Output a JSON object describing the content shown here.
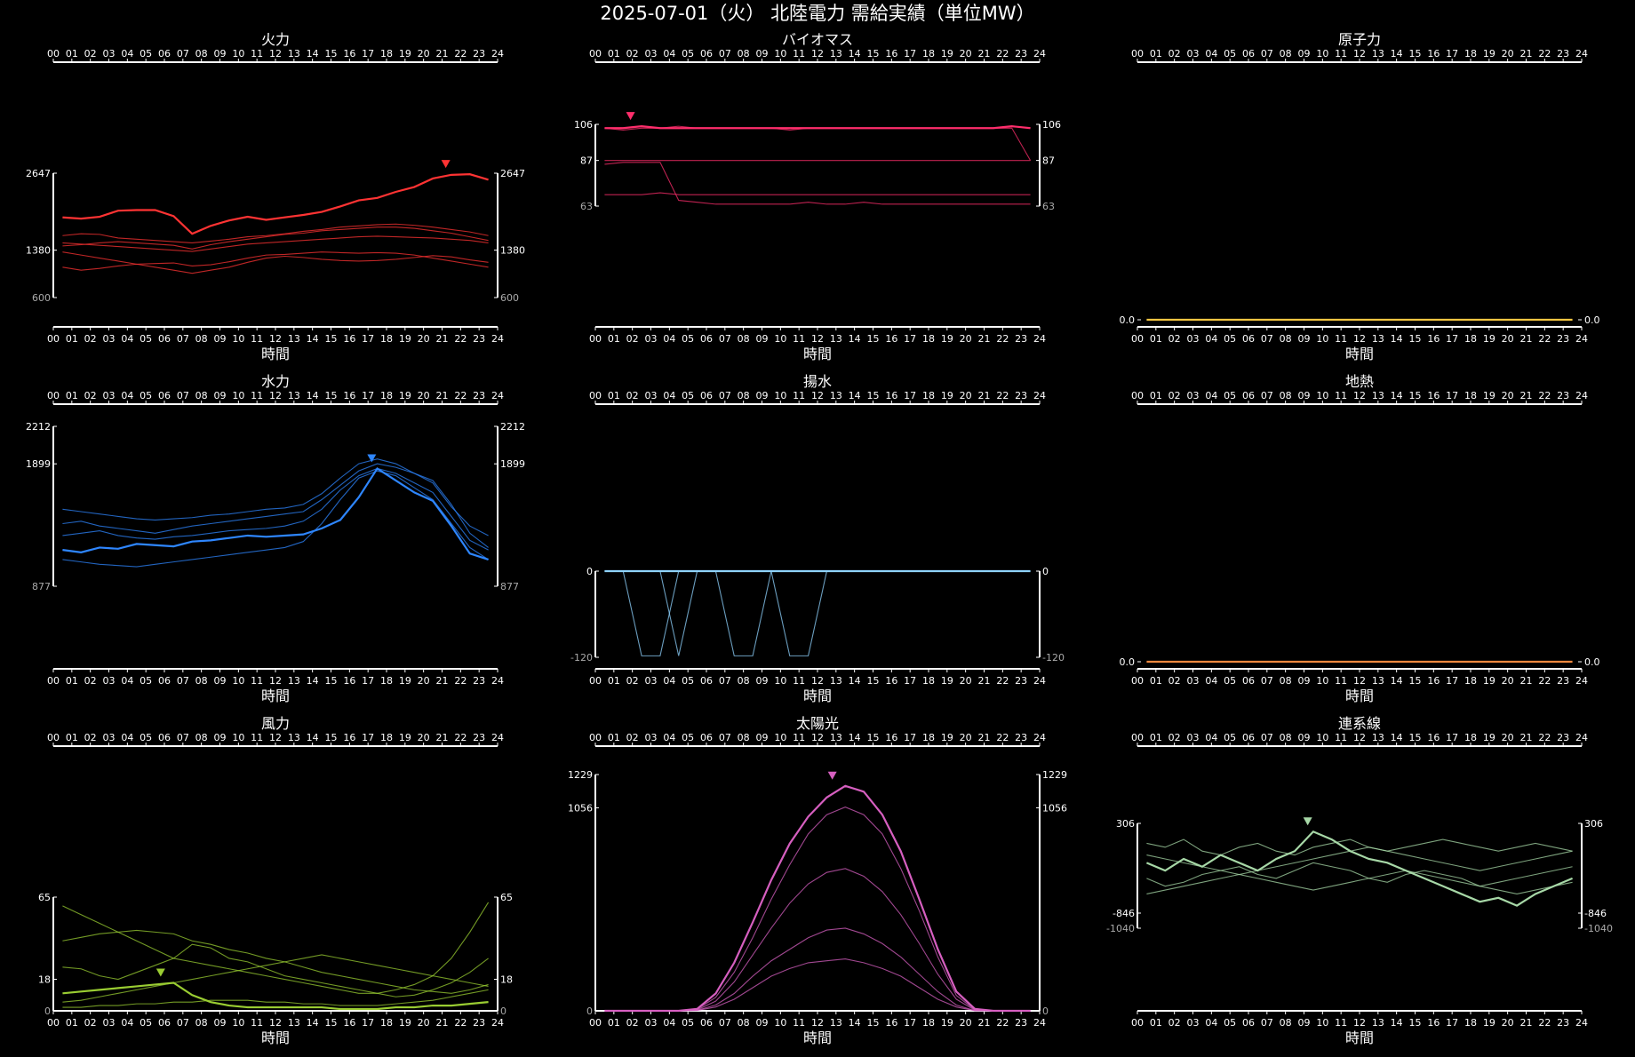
{
  "title": "2025-07-01（火） 北陸電力 需給実績（単位MW）",
  "hour_ticks": [
    "00",
    "01",
    "02",
    "03",
    "04",
    "05",
    "06",
    "07",
    "08",
    "09",
    "10",
    "11",
    "12",
    "13",
    "14",
    "15",
    "16",
    "17",
    "18",
    "19",
    "20",
    "21",
    "22",
    "23",
    "24"
  ],
  "xlabel": "時間",
  "chart_data": [
    {
      "type": "line",
      "title": "火力",
      "color": "#ff3333",
      "ylim": [
        600,
        2647
      ],
      "yticks": [
        600,
        1380,
        2647
      ],
      "ymax_label": "2647",
      "ymid_label": "1380",
      "ymin_label": "600",
      "peak_hour": 21.2,
      "series": [
        {
          "values": [
            1920,
            1900,
            1930,
            2030,
            2040,
            2040,
            1940,
            1650,
            1780,
            1870,
            1930,
            1880,
            1920,
            1960,
            2010,
            2100,
            2200,
            2240,
            2340,
            2420,
            2560,
            2620,
            2630,
            2540
          ]
        },
        {
          "values": [
            1450,
            1470,
            1500,
            1520,
            1500,
            1480,
            1460,
            1400,
            1470,
            1520,
            1560,
            1600,
            1640,
            1660,
            1700,
            1720,
            1740,
            1760,
            1760,
            1740,
            1700,
            1660,
            1600,
            1540
          ]
        },
        {
          "values": [
            1100,
            1050,
            1080,
            1120,
            1150,
            1160,
            1170,
            1120,
            1140,
            1190,
            1250,
            1300,
            1310,
            1330,
            1350,
            1340,
            1330,
            1340,
            1330,
            1300,
            1250,
            1200,
            1150,
            1100
          ]
        },
        {
          "values": [
            1620,
            1650,
            1640,
            1580,
            1560,
            1540,
            1520,
            1500,
            1530,
            1560,
            1600,
            1620,
            1650,
            1690,
            1720,
            1760,
            1780,
            1800,
            1810,
            1790,
            1760,
            1720,
            1680,
            1620
          ]
        },
        {
          "values": [
            1350,
            1300,
            1250,
            1200,
            1150,
            1100,
            1050,
            1000,
            1050,
            1100,
            1180,
            1250,
            1280,
            1260,
            1230,
            1210,
            1200,
            1210,
            1230,
            1260,
            1290,
            1270,
            1220,
            1180
          ]
        },
        {
          "values": [
            1500,
            1480,
            1460,
            1440,
            1420,
            1400,
            1380,
            1360,
            1400,
            1440,
            1480,
            1500,
            1520,
            1540,
            1560,
            1580,
            1600,
            1610,
            1600,
            1590,
            1580,
            1560,
            1540,
            1500
          ]
        }
      ]
    },
    {
      "type": "line",
      "title": "バイオマス",
      "color": "#ff2e6c",
      "ylim": [
        63,
        106
      ],
      "ymax_label": "106",
      "ymid_label": "87",
      "ymin_label": "63",
      "peak_hour": 1.9,
      "series": [
        {
          "values": [
            104,
            104,
            105,
            104,
            104,
            104,
            104,
            104,
            104,
            104,
            104,
            104,
            104,
            104,
            104,
            104,
            104,
            104,
            104,
            104,
            104,
            104,
            105,
            104
          ]
        },
        {
          "values": [
            104,
            103,
            104,
            104,
            105,
            104,
            104,
            104,
            104,
            104,
            103,
            104,
            104,
            104,
            104,
            104,
            104,
            104,
            104,
            104,
            104,
            104,
            104,
            87
          ]
        },
        {
          "values": [
            87,
            87,
            87,
            87,
            87,
            87,
            87,
            87,
            87,
            87,
            87,
            87,
            87,
            87,
            87,
            87,
            87,
            87,
            87,
            87,
            87,
            87,
            87,
            87
          ]
        },
        {
          "values": [
            69,
            69,
            69,
            70,
            69,
            69,
            69,
            69,
            69,
            69,
            69,
            69,
            69,
            69,
            69,
            69,
            69,
            69,
            69,
            69,
            69,
            69,
            69,
            69
          ]
        },
        {
          "values": [
            85,
            86,
            86,
            86,
            66,
            65,
            64,
            64,
            64,
            64,
            64,
            65,
            64,
            64,
            65,
            64,
            64,
            64,
            64,
            64,
            64,
            64,
            64,
            64
          ]
        }
      ]
    },
    {
      "type": "line",
      "title": "原子力",
      "color": "#f5c542",
      "ylim": [
        0,
        1
      ],
      "ymax_label": "0.0",
      "ymid_label": "",
      "ymin_label": "",
      "peak_hour": null,
      "series": [
        {
          "values": [
            0,
            0,
            0,
            0,
            0,
            0,
            0,
            0,
            0,
            0,
            0,
            0,
            0,
            0,
            0,
            0,
            0,
            0,
            0,
            0,
            0,
            0,
            0,
            0
          ]
        }
      ]
    },
    {
      "type": "line",
      "title": "水力",
      "color": "#2e86ff",
      "ylim": [
        877,
        2212
      ],
      "ymax_label": "2212",
      "ymid_label": "1899",
      "ymin_label": "877",
      "peak_hour": 17.2,
      "series": [
        {
          "values": [
            1180,
            1160,
            1200,
            1190,
            1230,
            1220,
            1210,
            1250,
            1260,
            1280,
            1300,
            1290,
            1300,
            1310,
            1360,
            1430,
            1620,
            1860,
            1760,
            1660,
            1590,
            1380,
            1150,
            1100
          ]
        },
        {
          "values": [
            1400,
            1420,
            1380,
            1360,
            1340,
            1320,
            1350,
            1380,
            1400,
            1420,
            1440,
            1460,
            1480,
            1500,
            1600,
            1720,
            1840,
            1900,
            1870,
            1820,
            1760,
            1560,
            1320,
            1200
          ]
        },
        {
          "values": [
            1100,
            1080,
            1060,
            1050,
            1040,
            1060,
            1080,
            1100,
            1120,
            1140,
            1160,
            1180,
            1200,
            1250,
            1400,
            1600,
            1780,
            1840,
            1800,
            1700,
            1600,
            1400,
            1200,
            1100
          ]
        },
        {
          "values": [
            1300,
            1320,
            1340,
            1300,
            1280,
            1270,
            1290,
            1300,
            1320,
            1340,
            1350,
            1360,
            1380,
            1420,
            1520,
            1680,
            1800,
            1860,
            1820,
            1740,
            1660,
            1460,
            1260,
            1180
          ]
        },
        {
          "values": [
            1520,
            1500,
            1480,
            1460,
            1440,
            1430,
            1440,
            1450,
            1470,
            1480,
            1500,
            1520,
            1530,
            1560,
            1650,
            1780,
            1900,
            1940,
            1900,
            1820,
            1740,
            1540,
            1380,
            1300
          ]
        }
      ]
    },
    {
      "type": "line",
      "title": "揚水",
      "color": "#8fd3ff",
      "ylim": [
        -120,
        0
      ],
      "ymax_label": "0",
      "ymid_label": "",
      "ymin_label": "-120",
      "peak_hour": null,
      "series": [
        {
          "values": [
            0,
            0,
            0,
            0,
            0,
            0,
            0,
            0,
            0,
            0,
            0,
            0,
            0,
            0,
            0,
            0,
            0,
            0,
            0,
            0,
            0,
            0,
            0,
            0
          ]
        },
        {
          "values": [
            0,
            0,
            -118,
            -118,
            0,
            0,
            0,
            -118,
            -118,
            0,
            0,
            0,
            0,
            0,
            0,
            0,
            0,
            0,
            0,
            0,
            0,
            0,
            0,
            0
          ]
        },
        {
          "values": [
            0,
            0,
            0,
            0,
            -118,
            0,
            0,
            0,
            0,
            0,
            -118,
            -118,
            0,
            0,
            0,
            0,
            0,
            0,
            0,
            0,
            0,
            0,
            0,
            0
          ]
        }
      ]
    },
    {
      "type": "line",
      "title": "地熱",
      "color": "#f0883e",
      "ylim": [
        0,
        1
      ],
      "ymax_label": "0.0",
      "ymid_label": "",
      "ymin_label": "",
      "peak_hour": null,
      "series": [
        {
          "values": [
            0,
            0,
            0,
            0,
            0,
            0,
            0,
            0,
            0,
            0,
            0,
            0,
            0,
            0,
            0,
            0,
            0,
            0,
            0,
            0,
            0,
            0,
            0,
            0
          ]
        }
      ]
    },
    {
      "type": "line",
      "title": "風力",
      "color": "#9acd32",
      "ylim": [
        0,
        65
      ],
      "ymax_label": "65",
      "ymid_label": "18",
      "ymin_label": "0",
      "peak_hour": 5.8,
      "series": [
        {
          "values": [
            10,
            11,
            12,
            13,
            14,
            15,
            16,
            9,
            5,
            3,
            2,
            2,
            2,
            2,
            2,
            1,
            1,
            1,
            2,
            2,
            3,
            3,
            4,
            5
          ]
        },
        {
          "values": [
            25,
            24,
            20,
            18,
            22,
            26,
            30,
            38,
            36,
            30,
            28,
            24,
            20,
            18,
            16,
            14,
            12,
            10,
            8,
            9,
            12,
            16,
            22,
            30
          ]
        },
        {
          "values": [
            40,
            42,
            44,
            45,
            46,
            45,
            44,
            40,
            38,
            35,
            33,
            30,
            28,
            25,
            22,
            20,
            18,
            16,
            14,
            12,
            11,
            10,
            12,
            15
          ]
        },
        {
          "values": [
            5,
            6,
            8,
            10,
            12,
            14,
            16,
            18,
            20,
            22,
            24,
            26,
            28,
            30,
            32,
            30,
            28,
            26,
            24,
            22,
            20,
            18,
            16,
            14
          ]
        },
        {
          "values": [
            60,
            55,
            50,
            45,
            40,
            35,
            30,
            28,
            26,
            24,
            22,
            20,
            18,
            16,
            14,
            12,
            10,
            10,
            12,
            15,
            20,
            30,
            45,
            62
          ]
        },
        {
          "values": [
            2,
            2,
            3,
            3,
            4,
            4,
            5,
            5,
            6,
            6,
            6,
            5,
            5,
            4,
            4,
            3,
            3,
            3,
            4,
            5,
            6,
            8,
            10,
            12
          ]
        }
      ]
    },
    {
      "type": "line",
      "title": "太陽光",
      "color": "#d65fc0",
      "ylim": [
        0,
        1229
      ],
      "ymax_label": "1229",
      "ymid_label": "1056",
      "ymin_label": "0",
      "peak_hour": 12.8,
      "series": [
        {
          "values": [
            0,
            0,
            0,
            0,
            0,
            10,
            90,
            250,
            460,
            680,
            870,
            1010,
            1110,
            1170,
            1140,
            1020,
            830,
            580,
            320,
            100,
            10,
            0,
            0,
            0
          ]
        },
        {
          "values": [
            0,
            0,
            0,
            0,
            0,
            8,
            70,
            200,
            380,
            580,
            760,
            920,
            1020,
            1060,
            1020,
            920,
            740,
            520,
            280,
            80,
            5,
            0,
            0,
            0
          ]
        },
        {
          "values": [
            0,
            0,
            0,
            0,
            0,
            5,
            50,
            150,
            290,
            430,
            560,
            660,
            720,
            740,
            700,
            620,
            500,
            350,
            190,
            60,
            3,
            0,
            0,
            0
          ]
        },
        {
          "values": [
            0,
            0,
            0,
            0,
            0,
            3,
            30,
            90,
            180,
            260,
            320,
            380,
            420,
            430,
            400,
            350,
            280,
            190,
            100,
            30,
            1,
            0,
            0,
            0
          ]
        },
        {
          "values": [
            0,
            0,
            0,
            0,
            0,
            2,
            20,
            60,
            120,
            180,
            220,
            250,
            260,
            270,
            250,
            220,
            180,
            120,
            60,
            20,
            1,
            0,
            0,
            0
          ]
        }
      ]
    },
    {
      "type": "line",
      "title": "連系線",
      "color": "#a7d8a7",
      "ylim": [
        -1040,
        306
      ],
      "ymax_label": "306",
      "ymid_label": "-846",
      "ymin_label": "-1040",
      "peak_hour": 9.2,
      "series": [
        {
          "values": [
            -200,
            -300,
            -150,
            -250,
            -100,
            -200,
            -300,
            -150,
            -50,
            200,
            100,
            -50,
            -150,
            -200,
            -300,
            -400,
            -500,
            -600,
            -700,
            -650,
            -750,
            -600,
            -500,
            -400
          ]
        },
        {
          "values": [
            50,
            0,
            100,
            -50,
            -100,
            0,
            50,
            -50,
            -100,
            0,
            50,
            100,
            0,
            -50,
            0,
            50,
            100,
            50,
            0,
            -50,
            0,
            50,
            0,
            -50
          ]
        },
        {
          "values": [
            -400,
            -500,
            -450,
            -350,
            -300,
            -250,
            -350,
            -400,
            -300,
            -200,
            -250,
            -300,
            -400,
            -450,
            -350,
            -300,
            -350,
            -400,
            -500,
            -450,
            -400,
            -350,
            -300,
            -250
          ]
        },
        {
          "values": [
            -100,
            -150,
            -200,
            -250,
            -300,
            -350,
            -300,
            -250,
            -200,
            -150,
            -100,
            -50,
            0,
            -50,
            -100,
            -150,
            -200,
            -250,
            -300,
            -250,
            -200,
            -150,
            -100,
            -50
          ]
        },
        {
          "values": [
            -600,
            -550,
            -500,
            -450,
            -400,
            -350,
            -400,
            -450,
            -500,
            -550,
            -500,
            -450,
            -400,
            -350,
            -300,
            -350,
            -400,
            -450,
            -500,
            -550,
            -600,
            -550,
            -500,
            -450
          ]
        }
      ]
    }
  ]
}
